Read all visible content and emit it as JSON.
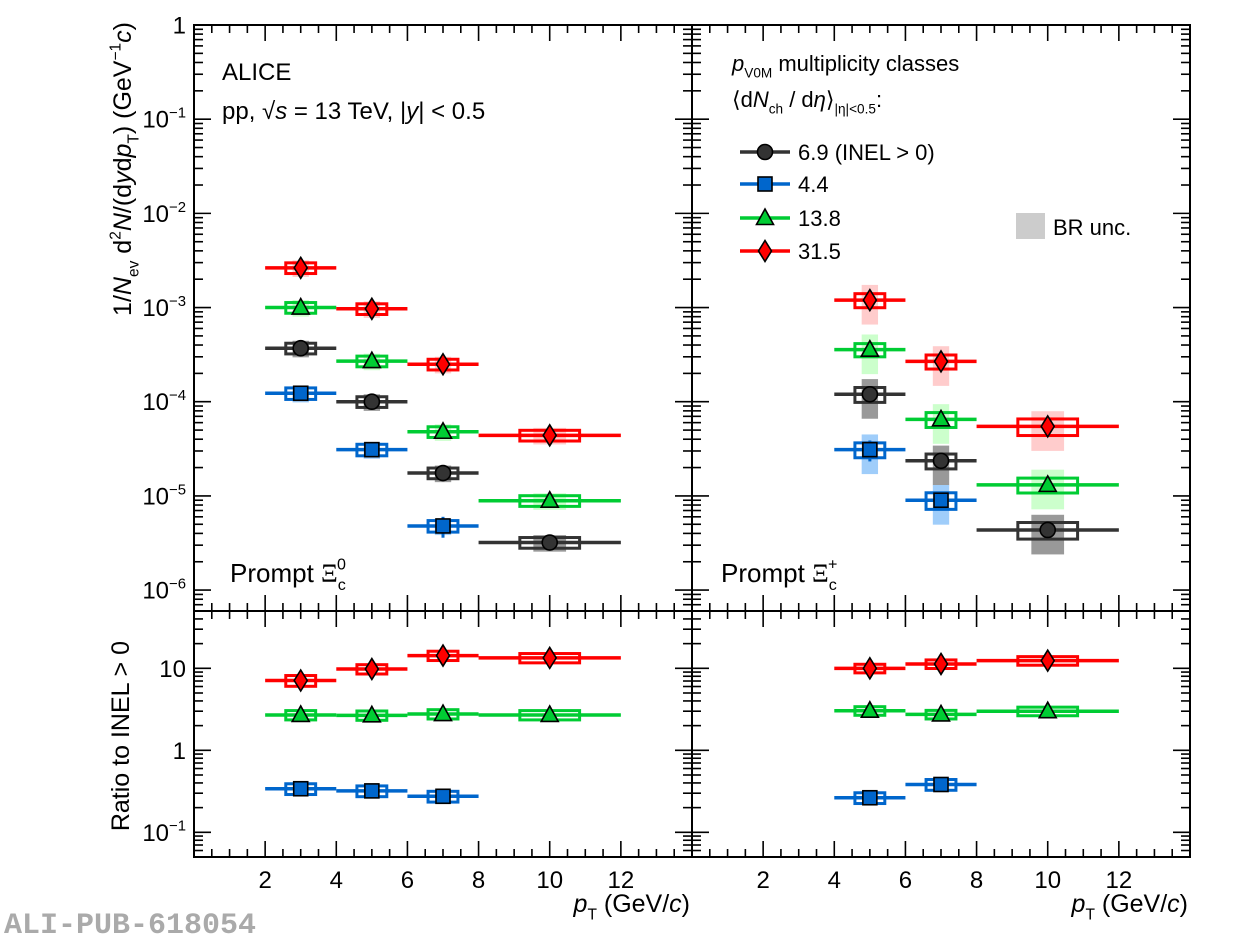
{
  "figure": {
    "watermark": "ALI-PUB-618054",
    "experiment": "ALICE",
    "system_label": [
      {
        "t": "pp, ",
        "s": "n"
      },
      {
        "t": "√",
        "s": "n"
      },
      {
        "t": "s",
        "s": "i"
      },
      {
        "t": " = 13 TeV, |",
        "s": "n"
      },
      {
        "t": "y",
        "s": "i"
      },
      {
        "t": "| < 0.5",
        "s": "n"
      }
    ]
  },
  "legend": {
    "header_line1": [
      {
        "t": "p",
        "s": "i"
      },
      {
        "t": "V0M",
        "s": "sub"
      },
      {
        "t": " multiplicity classes",
        "s": "n"
      }
    ],
    "header_line2": [
      {
        "t": "⟨d",
        "s": "n"
      },
      {
        "t": "N",
        "s": "i"
      },
      {
        "t": "ch",
        "s": "sub"
      },
      {
        "t": " / d",
        "s": "n"
      },
      {
        "t": "η",
        "s": "i"
      },
      {
        "t": "⟩",
        "s": "n"
      },
      {
        "t": "|η|<0.5",
        "s": "sub"
      },
      {
        "t": ":",
        "s": "n"
      }
    ],
    "entries": [
      {
        "key": "inel",
        "label": "6.9 (INEL > 0)",
        "color": "#333333",
        "band_color": "#999999",
        "marker": "circle"
      },
      {
        "key": "m44",
        "label": "4.4",
        "color": "#0066cc",
        "band_color": "#9fcdfa",
        "marker": "square"
      },
      {
        "key": "m138",
        "label": "13.8",
        "color": "#00cc33",
        "band_color": "#ccffcc",
        "marker": "triangle"
      },
      {
        "key": "m315",
        "label": "31.5",
        "color": "#ff0000",
        "band_color": "#ffcccc",
        "marker": "diamond"
      }
    ],
    "br_unc": {
      "label": "BR unc.",
      "color": "#cccccc"
    }
  },
  "chart_data": [
    {
      "panel": "top-left",
      "type": "scatter",
      "yscale": "log",
      "xlim": [
        0,
        14
      ],
      "ylim": [
        6e-07,
        1
      ],
      "grid": false,
      "particle": [
        {
          "t": "Prompt ",
          "s": "n"
        },
        {
          "t": "Ξ",
          "s": "serif"
        },
        {
          "t": "c",
          "s": "sub"
        },
        {
          "t": "0",
          "s": "supstack"
        }
      ],
      "ylabel": [
        {
          "t": "1/",
          "s": "n"
        },
        {
          "t": "N",
          "s": "i"
        },
        {
          "t": "ev",
          "s": "sub"
        },
        {
          "t": " d",
          "s": "n"
        },
        {
          "t": "2",
          "s": "sup"
        },
        {
          "t": "N",
          "s": "i"
        },
        {
          "t": "/(d",
          "s": "n"
        },
        {
          "t": "y",
          "s": "i"
        },
        {
          "t": "d",
          "s": "n"
        },
        {
          "t": "p",
          "s": "i"
        },
        {
          "t": "T",
          "s": "sub"
        },
        {
          "t": ") (GeV",
          "s": "n"
        },
        {
          "t": "−1",
          "s": "sup"
        },
        {
          "t": "c",
          "s": "i"
        },
        {
          "t": ")",
          "s": "n"
        }
      ],
      "yticks": [
        {
          "value": 1,
          "label": [
            {
              "t": "1",
              "s": "n"
            }
          ]
        },
        {
          "value": 0.1,
          "label": [
            {
              "t": "10",
              "s": "n"
            },
            {
              "t": "−1",
              "s": "sup"
            }
          ]
        },
        {
          "value": 0.01,
          "label": [
            {
              "t": "10",
              "s": "n"
            },
            {
              "t": "−2",
              "s": "sup"
            }
          ]
        },
        {
          "value": 0.001,
          "label": [
            {
              "t": "10",
              "s": "n"
            },
            {
              "t": "−3",
              "s": "sup"
            }
          ]
        },
        {
          "value": 0.0001,
          "label": [
            {
              "t": "10",
              "s": "n"
            },
            {
              "t": "−4",
              "s": "sup"
            }
          ]
        },
        {
          "value": 1e-05,
          "label": [
            {
              "t": "10",
              "s": "n"
            },
            {
              "t": "−5",
              "s": "sup"
            }
          ]
        },
        {
          "value": 1e-06,
          "label": [
            {
              "t": "10",
              "s": "n"
            },
            {
              "t": "−6",
              "s": "sup"
            }
          ]
        }
      ],
      "series": [
        {
          "key": "inel",
          "name": "6.9 (INEL > 0)",
          "x": [
            3,
            5,
            7,
            10
          ],
          "x_bins": [
            [
              2,
              4
            ],
            [
              4,
              6
            ],
            [
              6,
              8
            ],
            [
              8,
              12
            ]
          ],
          "y": [
            0.00037,
            0.0001,
            1.75e-05,
            3.2e-06
          ],
          "stat_rel": [
            0.08,
            0.08,
            0.1,
            0.12
          ],
          "sys_rel": [
            0.13,
            0.13,
            0.13,
            0.13
          ],
          "br_rel": [
            0.2,
            0.2,
            0.2,
            0.2
          ]
        },
        {
          "key": "m44",
          "name": "4.4",
          "x": [
            3,
            5,
            7
          ],
          "x_bins": [
            [
              2,
              4
            ],
            [
              4,
              6
            ],
            [
              6,
              8
            ]
          ],
          "y": [
            0.000123,
            3.1e-05,
            4.8e-06
          ],
          "stat_rel": [
            0.1,
            0.1,
            0.25
          ],
          "sys_rel": [
            0.14,
            0.14,
            0.14
          ],
          "br_rel": [
            0.2,
            0.2,
            0.2
          ]
        },
        {
          "key": "m138",
          "name": "13.8",
          "x": [
            3,
            5,
            7,
            10
          ],
          "x_bins": [
            [
              2,
              4
            ],
            [
              4,
              6
            ],
            [
              6,
              8
            ],
            [
              8,
              12
            ]
          ],
          "y": [
            0.001,
            0.00027,
            4.8e-05,
            8.9e-06
          ],
          "stat_rel": [
            0.07,
            0.07,
            0.1,
            0.15
          ],
          "sys_rel": [
            0.13,
            0.13,
            0.13,
            0.13
          ],
          "br_rel": [
            0.2,
            0.2,
            0.2,
            0.2
          ]
        },
        {
          "key": "m315",
          "name": "31.5",
          "x": [
            3,
            5,
            7,
            10
          ],
          "x_bins": [
            [
              2,
              4
            ],
            [
              4,
              6
            ],
            [
              6,
              8
            ],
            [
              8,
              12
            ]
          ],
          "y": [
            0.00264,
            0.00097,
            0.00025,
            4.4e-05
          ],
          "stat_rel": [
            0.07,
            0.08,
            0.1,
            0.15
          ],
          "sys_rel": [
            0.13,
            0.13,
            0.13,
            0.13
          ],
          "br_rel": [
            0.2,
            0.2,
            0.2,
            0.2
          ]
        }
      ]
    },
    {
      "panel": "top-right",
      "type": "scatter",
      "yscale": "log",
      "xlim": [
        0,
        14
      ],
      "ylim": [
        6e-07,
        1
      ],
      "grid": false,
      "particle": [
        {
          "t": "Prompt ",
          "s": "n"
        },
        {
          "t": "Ξ",
          "s": "serif"
        },
        {
          "t": "c",
          "s": "sub"
        },
        {
          "t": "+",
          "s": "supstack"
        }
      ],
      "series": [
        {
          "key": "inel",
          "name": "6.9 (INEL > 0)",
          "x": [
            5,
            7,
            10
          ],
          "x_bins": [
            [
              4,
              6
            ],
            [
              6,
              8
            ],
            [
              8,
              12
            ]
          ],
          "y": [
            0.00012,
            2.36e-05,
            4.35e-06
          ],
          "stat_rel": [
            0.1,
            0.1,
            0.1
          ],
          "sys_rel": [
            0.18,
            0.18,
            0.2
          ],
          "br_rel": [
            0.45,
            0.45,
            0.45
          ]
        },
        {
          "key": "m44",
          "name": "4.4",
          "x": [
            5,
            7
          ],
          "x_bins": [
            [
              4,
              6
            ],
            [
              6,
              8
            ]
          ],
          "y": [
            3.1e-05,
            9e-06
          ],
          "stat_rel": [
            0.25,
            0.15
          ],
          "sys_rel": [
            0.18,
            0.2
          ],
          "br_rel": [
            0.45,
            0.45
          ]
        },
        {
          "key": "m138",
          "name": "13.8",
          "x": [
            5,
            7,
            10
          ],
          "x_bins": [
            [
              4,
              6
            ],
            [
              6,
              8
            ],
            [
              8,
              12
            ]
          ],
          "y": [
            0.000357,
            6.5e-05,
            1.31e-05
          ],
          "stat_rel": [
            0.08,
            0.15,
            0.15
          ],
          "sys_rel": [
            0.16,
            0.18,
            0.18
          ],
          "br_rel": [
            0.45,
            0.45,
            0.45
          ]
        },
        {
          "key": "m315",
          "name": "31.5",
          "x": [
            5,
            7,
            10
          ],
          "x_bins": [
            [
              4,
              6
            ],
            [
              6,
              8
            ],
            [
              8,
              12
            ]
          ],
          "y": [
            0.0012,
            0.000268,
            5.47e-05
          ],
          "stat_rel": [
            0.12,
            0.15,
            0.2
          ],
          "sys_rel": [
            0.17,
            0.17,
            0.2
          ],
          "br_rel": [
            0.45,
            0.45,
            0.45
          ]
        }
      ]
    },
    {
      "panel": "bottom-left",
      "type": "scatter",
      "yscale": "log",
      "xlim": [
        0,
        14
      ],
      "ylim": [
        0.05,
        50
      ],
      "grid": false,
      "ylabel": [
        {
          "t": "Ratio to INEL > 0",
          "s": "n"
        }
      ],
      "xlabel": [
        {
          "t": "p",
          "s": "i"
        },
        {
          "t": "T",
          "s": "sub"
        },
        {
          "t": " (GeV/",
          "s": "n"
        },
        {
          "t": "c",
          "s": "i"
        },
        {
          "t": ")",
          "s": "n"
        }
      ],
      "yticks": [
        {
          "value": 10,
          "label": [
            {
              "t": "10",
              "s": "n"
            }
          ]
        },
        {
          "value": 1,
          "label": [
            {
              "t": "1",
              "s": "n"
            }
          ]
        },
        {
          "value": 0.1,
          "label": [
            {
              "t": "10",
              "s": "n"
            },
            {
              "t": "−1",
              "s": "sup"
            }
          ]
        }
      ],
      "xticks": [
        {
          "value": 2,
          "label": "2"
        },
        {
          "value": 4,
          "label": "4"
        },
        {
          "value": 6,
          "label": "6"
        },
        {
          "value": 8,
          "label": "8"
        },
        {
          "value": 10,
          "label": "10"
        },
        {
          "value": 12,
          "label": "12"
        }
      ],
      "series": [
        {
          "key": "m44",
          "name": "4.4",
          "x": [
            3,
            5,
            7
          ],
          "x_bins": [
            [
              2,
              4
            ],
            [
              4,
              6
            ],
            [
              6,
              8
            ]
          ],
          "y": [
            0.34,
            0.32,
            0.275
          ],
          "stat_rel": [
            0.08,
            0.08,
            0.12
          ],
          "sys_rel": [
            0.15,
            0.15,
            0.15
          ]
        },
        {
          "key": "m138",
          "name": "13.8",
          "x": [
            3,
            5,
            7,
            10
          ],
          "x_bins": [
            [
              2,
              4
            ],
            [
              4,
              6
            ],
            [
              6,
              8
            ],
            [
              8,
              12
            ]
          ],
          "y": [
            2.7,
            2.67,
            2.77,
            2.7
          ],
          "stat_rel": [
            0.08,
            0.08,
            0.08,
            0.1
          ],
          "sys_rel": [
            0.13,
            0.13,
            0.13,
            0.13
          ]
        },
        {
          "key": "m315",
          "name": "31.5",
          "x": [
            3,
            5,
            7,
            10
          ],
          "x_bins": [
            [
              2,
              4
            ],
            [
              4,
              6
            ],
            [
              6,
              8
            ],
            [
              8,
              12
            ]
          ],
          "y": [
            7.1,
            9.8,
            14.3,
            13.4
          ],
          "stat_rel": [
            0.1,
            0.1,
            0.12,
            0.1
          ],
          "sys_rel": [
            0.15,
            0.13,
            0.13,
            0.13
          ]
        }
      ]
    },
    {
      "panel": "bottom-right",
      "type": "scatter",
      "yscale": "log",
      "xlim": [
        0,
        14
      ],
      "ylim": [
        0.05,
        50
      ],
      "grid": false,
      "xlabel": [
        {
          "t": "p",
          "s": "i"
        },
        {
          "t": "T",
          "s": "sub"
        },
        {
          "t": " (GeV/",
          "s": "n"
        },
        {
          "t": "c",
          "s": "i"
        },
        {
          "t": ")",
          "s": "n"
        }
      ],
      "xticks": [
        {
          "value": 2,
          "label": "2"
        },
        {
          "value": 4,
          "label": "4"
        },
        {
          "value": 6,
          "label": "6"
        },
        {
          "value": 8,
          "label": "8"
        },
        {
          "value": 10,
          "label": "10"
        },
        {
          "value": 12,
          "label": "12"
        }
      ],
      "series": [
        {
          "key": "m44",
          "name": "4.4",
          "x": [
            5,
            7
          ],
          "x_bins": [
            [
              4,
              6
            ],
            [
              6,
              8
            ]
          ],
          "y": [
            0.264,
            0.383
          ],
          "stat_rel": [
            0.15,
            0.1
          ],
          "sys_rel": [
            0.15,
            0.15
          ]
        },
        {
          "key": "m138",
          "name": "13.8",
          "x": [
            5,
            7,
            10
          ],
          "x_bins": [
            [
              4,
              6
            ],
            [
              6,
              8
            ],
            [
              8,
              12
            ]
          ],
          "y": [
            3.04,
            2.74,
            3.0
          ],
          "stat_rel": [
            0.1,
            0.1,
            0.1
          ],
          "sys_rel": [
            0.12,
            0.12,
            0.12
          ]
        },
        {
          "key": "m315",
          "name": "31.5",
          "x": [
            5,
            7,
            10
          ],
          "x_bins": [
            [
              4,
              6
            ],
            [
              6,
              8
            ],
            [
              8,
              12
            ]
          ],
          "y": [
            10.0,
            11.3,
            12.4
          ],
          "stat_rel": [
            0.12,
            0.15,
            0.15
          ],
          "sys_rel": [
            0.12,
            0.12,
            0.12
          ]
        }
      ]
    }
  ]
}
